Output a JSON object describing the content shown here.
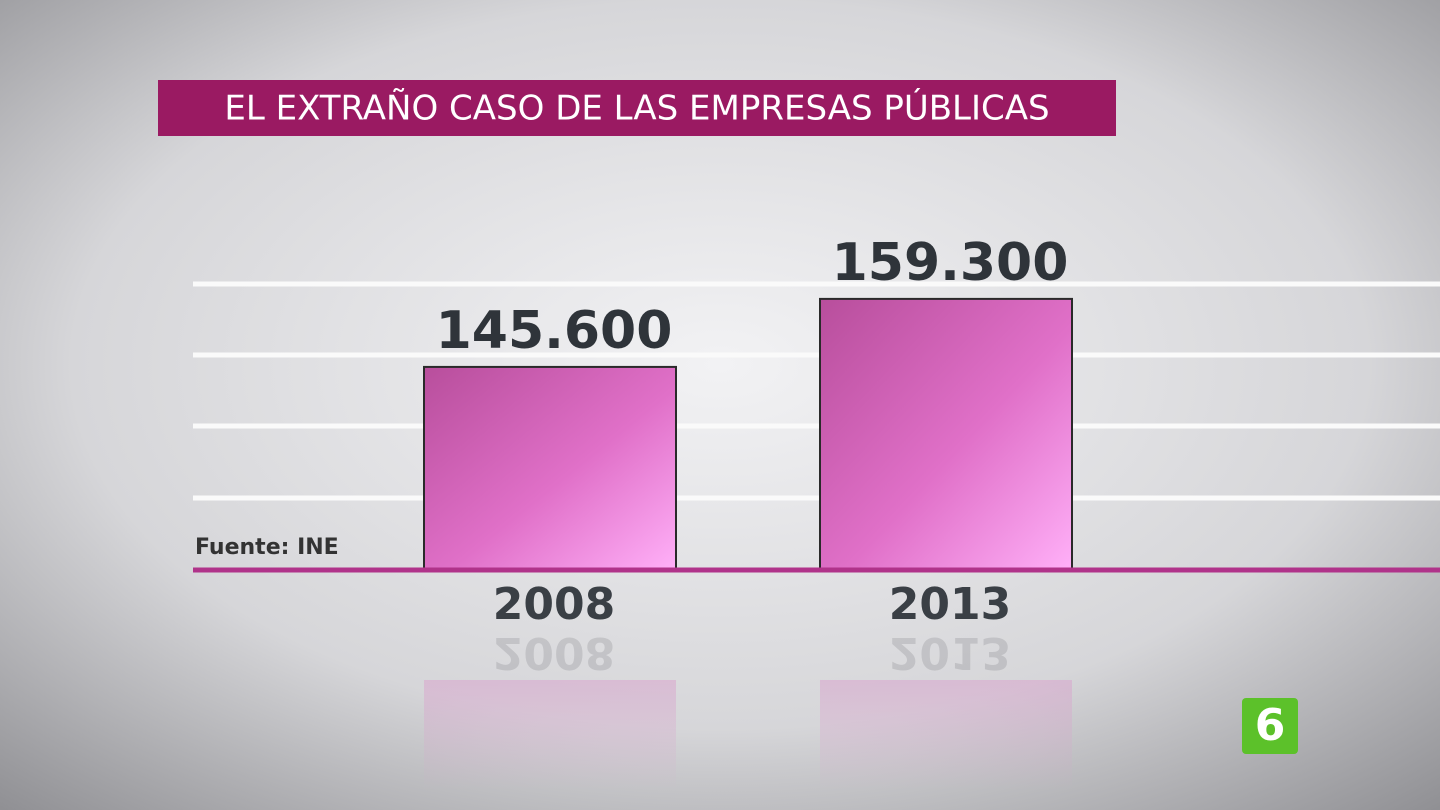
{
  "chart_data": {
    "type": "bar",
    "title": "EL EXTRAÑO CASO DE LAS EMPRESAS PÚBLICAS",
    "categories": [
      "2008",
      "2013"
    ],
    "values": [
      145600,
      159300
    ],
    "value_labels": [
      "145.600",
      "159.300"
    ],
    "color": "#d65bb8",
    "ylim": [
      104700,
      162300
    ],
    "grid": true,
    "source": "Fuente: INE"
  },
  "logo": "6"
}
